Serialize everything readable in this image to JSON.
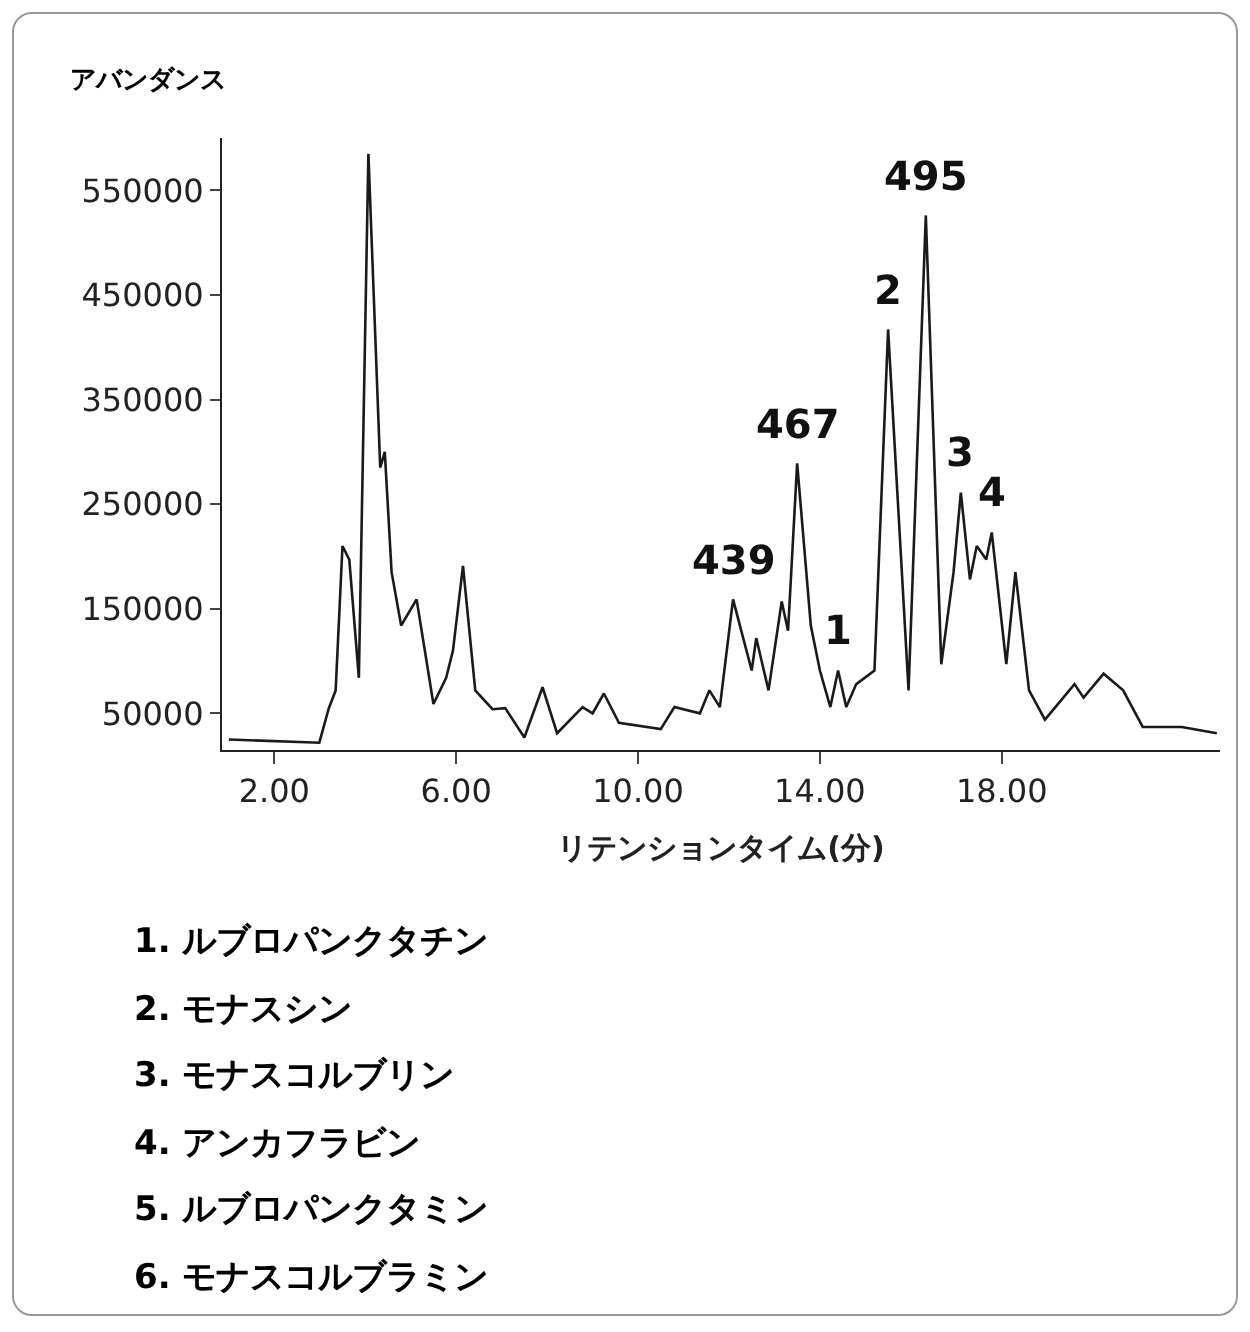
{
  "chart_data": {
    "type": "line",
    "ylabel": "アバンダンス",
    "xlabel": "リテンションタイム(分)",
    "x": [
      1.0,
      2.99,
      3.2,
      3.35,
      3.5,
      3.65,
      3.86,
      4.07,
      4.33,
      4.43,
      4.58,
      4.79,
      5.13,
      5.5,
      5.78,
      5.93,
      6.15,
      6.42,
      6.8,
      7.08,
      7.5,
      7.9,
      8.22,
      8.78,
      9.0,
      9.25,
      9.58,
      10.5,
      10.8,
      11.36,
      11.57,
      11.8,
      12.09,
      12.5,
      12.6,
      12.87,
      13.16,
      13.3,
      13.5,
      13.8,
      14.0,
      14.23,
      14.4,
      14.58,
      14.8,
      15.2,
      15.5,
      15.95,
      16.33,
      16.67,
      16.94,
      17.1,
      17.3,
      17.45,
      17.66,
      17.78,
      18.1,
      18.3,
      18.6,
      18.95,
      19.6,
      19.8,
      20.24,
      20.67,
      21.1,
      21.96,
      22.73
    ],
    "series": [
      {
        "color": "#1a1a1a",
        "values": [
          25000,
          22000,
          55000,
          72000,
          210000,
          197000,
          84000,
          585000,
          285000,
          300000,
          185000,
          134000,
          159000,
          59000,
          84000,
          110000,
          191000,
          72000,
          54000,
          55000,
          27000,
          75000,
          31000,
          56000,
          50000,
          69000,
          41000,
          35000,
          56000,
          50000,
          72000,
          56000,
          159000,
          91000,
          122000,
          72000,
          157000,
          129000,
          289000,
          134000,
          91000,
          56000,
          91000,
          56000,
          78000,
          91000,
          417000,
          72000,
          526000,
          97000,
          185000,
          261000,
          178000,
          210000,
          197000,
          223000,
          97000,
          185000,
          72000,
          44000,
          78000,
          65000,
          88000,
          72000,
          37000,
          37000,
          31000
        ]
      }
    ],
    "xlim": [
      0.85,
      22.8
    ],
    "ylim": [
      15000,
      600000
    ],
    "xticks": [
      {
        "value": 2,
        "label": "2.00"
      },
      {
        "value": 6,
        "label": "6.00"
      },
      {
        "value": 10,
        "label": "10.00"
      },
      {
        "value": 14,
        "label": "14.00"
      },
      {
        "value": 18,
        "label": "18.00"
      }
    ],
    "yticks": [
      50000,
      150000,
      250000,
      350000,
      450000,
      550000
    ],
    "grid": false,
    "marker": "none",
    "line_style": "solid",
    "annotations": [
      {
        "text": "439",
        "x": 12.09,
        "y": 159000
      },
      {
        "text": "467",
        "x": 13.5,
        "y": 289000
      },
      {
        "text": "495",
        "x": 16.33,
        "y": 526000
      },
      {
        "text": "2",
        "x": 15.5,
        "y": 417000
      },
      {
        "text": "1",
        "x": 14.4,
        "y": 91000
      },
      {
        "text": "3",
        "x": 17.1,
        "y": 261000
      },
      {
        "text": "4",
        "x": 17.78,
        "y": 223000
      },
      "1. ルブロパンクタチン",
      "2. モナスシン",
      "3. モナスコルブリン",
      "4. アンカフラビン",
      "5. ルブロパンクタミン",
      "6. モナスコルブラミン"
    ]
  }
}
